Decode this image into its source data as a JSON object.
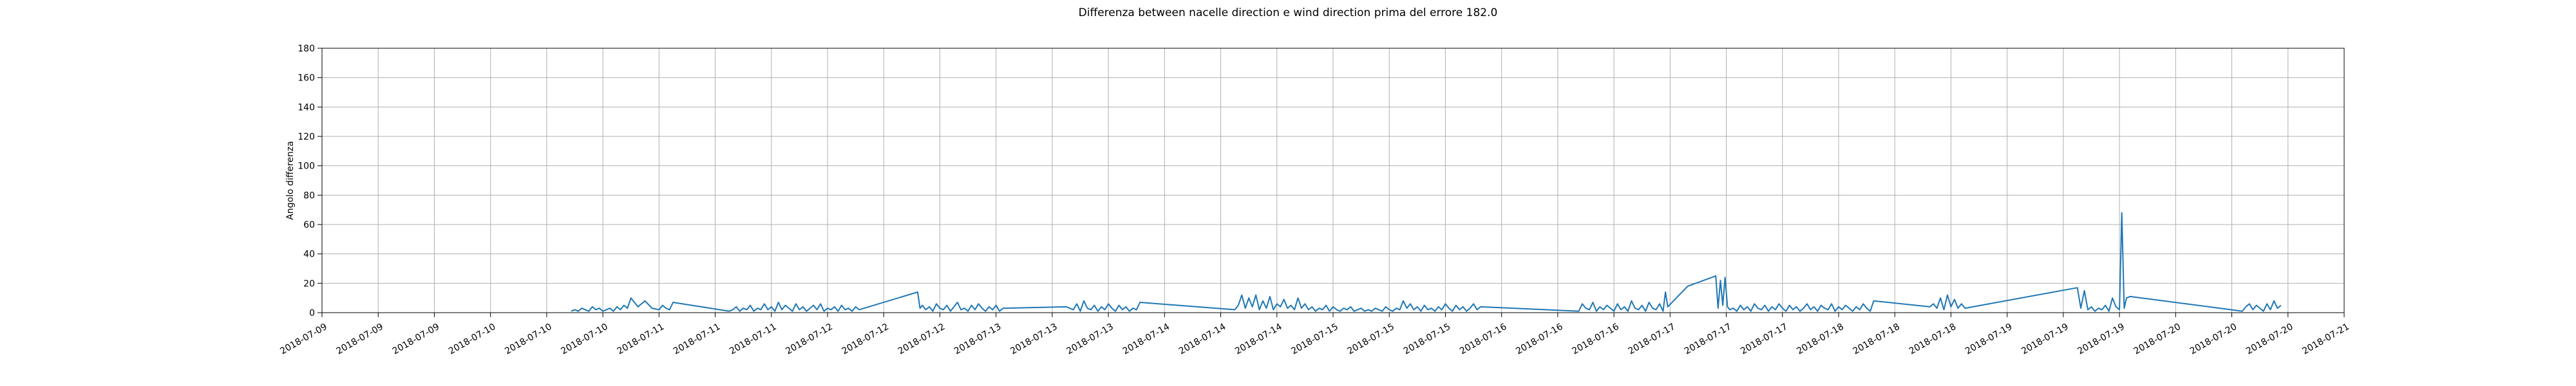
{
  "chart_data": {
    "type": "line",
    "title": "Differenza between nacelle direction e wind direction prima del errore 182.0",
    "xlabel": "",
    "ylabel": "Angolo differenza",
    "ylim": [
      0,
      180
    ],
    "y_ticks": [
      0,
      20,
      40,
      60,
      80,
      100,
      120,
      140,
      160,
      180
    ],
    "xlim": [
      "2018-07-09",
      "2018-07-21"
    ],
    "x_ticks": [
      "2018-07-09",
      "2018-07-09",
      "2018-07-09",
      "2018-07-10",
      "2018-07-10",
      "2018-07-10",
      "2018-07-11",
      "2018-07-11",
      "2018-07-11",
      "2018-07-12",
      "2018-07-12",
      "2018-07-12",
      "2018-07-13",
      "2018-07-13",
      "2018-07-13",
      "2018-07-14",
      "2018-07-14",
      "2018-07-14",
      "2018-07-15",
      "2018-07-15",
      "2018-07-15",
      "2018-07-16",
      "2018-07-16",
      "2018-07-16",
      "2018-07-17",
      "2018-07-17",
      "2018-07-17",
      "2018-07-18",
      "2018-07-18",
      "2018-07-18",
      "2018-07-19",
      "2018-07-19",
      "2018-07-19",
      "2018-07-20",
      "2018-07-20",
      "2018-07-20",
      "2018-07-21"
    ],
    "grid": true,
    "line_color": "#1f77b4",
    "series": [
      {
        "x": [
          "2018-07-10 11:30",
          "2018-07-10 12:00",
          "2018-07-10 12:30",
          "2018-07-10 13:00",
          "2018-07-10 13:30",
          "2018-07-10 14:00",
          "2018-07-10 14:30",
          "2018-07-10 15:00",
          "2018-07-10 15:30",
          "2018-07-10 16:00",
          "2018-07-10 16:30",
          "2018-07-10 17:00",
          "2018-07-10 17:30",
          "2018-07-10 18:00",
          "2018-07-10 18:30",
          "2018-07-10 19:00",
          "2018-07-10 19:30",
          "2018-07-10 20:00",
          "2018-07-10 21:00",
          "2018-07-10 22:00",
          "2018-07-10 23:00",
          "2018-07-11 00:00",
          "2018-07-11 00:30",
          "2018-07-11 01:00",
          "2018-07-11 01:30",
          "2018-07-11 02:00",
          "2018-07-11 10:00",
          "2018-07-11 10:30",
          "2018-07-11 11:00",
          "2018-07-11 11:30",
          "2018-07-11 12:00",
          "2018-07-11 12:30",
          "2018-07-11 13:00",
          "2018-07-11 13:30",
          "2018-07-11 14:00",
          "2018-07-11 14:30",
          "2018-07-11 15:00",
          "2018-07-11 15:30",
          "2018-07-11 16:00",
          "2018-07-11 16:30",
          "2018-07-11 17:00",
          "2018-07-11 17:30",
          "2018-07-11 18:00",
          "2018-07-11 18:30",
          "2018-07-11 19:00",
          "2018-07-11 19:30",
          "2018-07-11 20:00",
          "2018-07-11 20:30",
          "2018-07-11 21:00",
          "2018-07-11 21:30",
          "2018-07-11 22:00",
          "2018-07-11 22:30",
          "2018-07-11 23:00",
          "2018-07-11 23:30",
          "2018-07-12 00:00",
          "2018-07-12 00:30",
          "2018-07-12 01:00",
          "2018-07-12 01:30",
          "2018-07-12 02:00",
          "2018-07-12 02:30",
          "2018-07-12 03:00",
          "2018-07-12 03:30",
          "2018-07-12 04:00",
          "2018-07-12 04:30",
          "2018-07-12 12:50",
          "2018-07-12 13:10",
          "2018-07-12 13:30",
          "2018-07-12 14:00",
          "2018-07-12 14:30",
          "2018-07-12 15:00",
          "2018-07-12 15:30",
          "2018-07-12 16:00",
          "2018-07-12 16:30",
          "2018-07-12 17:00",
          "2018-07-12 17:30",
          "2018-07-12 18:00",
          "2018-07-12 18:30",
          "2018-07-12 19:00",
          "2018-07-12 19:30",
          "2018-07-12 20:00",
          "2018-07-12 20:30",
          "2018-07-12 21:00",
          "2018-07-12 21:30",
          "2018-07-12 22:00",
          "2018-07-12 22:30",
          "2018-07-12 23:00",
          "2018-07-12 23:30",
          "2018-07-13 00:00",
          "2018-07-13 00:30",
          "2018-07-13 01:00",
          "2018-07-13 10:00",
          "2018-07-13 11:00",
          "2018-07-13 11:30",
          "2018-07-13 12:00",
          "2018-07-13 12:30",
          "2018-07-13 13:00",
          "2018-07-13 13:30",
          "2018-07-13 14:00",
          "2018-07-13 14:30",
          "2018-07-13 15:00",
          "2018-07-13 15:30",
          "2018-07-13 16:00",
          "2018-07-13 16:30",
          "2018-07-13 17:00",
          "2018-07-13 17:30",
          "2018-07-13 18:00",
          "2018-07-13 18:30",
          "2018-07-13 19:00",
          "2018-07-13 19:30",
          "2018-07-13 20:00",
          "2018-07-13 20:30",
          "2018-07-14 10:00",
          "2018-07-14 10:30",
          "2018-07-14 11:00",
          "2018-07-14 11:30",
          "2018-07-14 12:00",
          "2018-07-14 12:30",
          "2018-07-14 13:00",
          "2018-07-14 13:30",
          "2018-07-14 14:00",
          "2018-07-14 14:30",
          "2018-07-14 15:00",
          "2018-07-14 15:30",
          "2018-07-14 16:00",
          "2018-07-14 16:30",
          "2018-07-14 17:00",
          "2018-07-14 17:30",
          "2018-07-14 18:00",
          "2018-07-14 18:30",
          "2018-07-14 19:00",
          "2018-07-14 19:30",
          "2018-07-14 20:00",
          "2018-07-14 20:30",
          "2018-07-14 21:00",
          "2018-07-14 21:30",
          "2018-07-14 22:00",
          "2018-07-14 22:30",
          "2018-07-14 23:00",
          "2018-07-14 23:30",
          "2018-07-15 00:00",
          "2018-07-15 00:30",
          "2018-07-15 01:00",
          "2018-07-15 01:30",
          "2018-07-15 02:00",
          "2018-07-15 02:30",
          "2018-07-15 03:00",
          "2018-07-15 03:30",
          "2018-07-15 04:00",
          "2018-07-15 04:30",
          "2018-07-15 05:00",
          "2018-07-15 05:30",
          "2018-07-15 06:00",
          "2018-07-15 06:30",
          "2018-07-15 07:00",
          "2018-07-15 07:30",
          "2018-07-15 08:00",
          "2018-07-15 08:30",
          "2018-07-15 09:00",
          "2018-07-15 09:30",
          "2018-07-15 10:00",
          "2018-07-15 10:30",
          "2018-07-15 11:00",
          "2018-07-15 11:30",
          "2018-07-15 12:00",
          "2018-07-15 12:30",
          "2018-07-15 13:00",
          "2018-07-15 13:30",
          "2018-07-15 14:00",
          "2018-07-15 14:30",
          "2018-07-15 15:00",
          "2018-07-15 15:30",
          "2018-07-15 16:00",
          "2018-07-15 16:30",
          "2018-07-15 17:00",
          "2018-07-15 17:30",
          "2018-07-15 18:00",
          "2018-07-15 18:30",
          "2018-07-15 19:00",
          "2018-07-15 19:30",
          "2018-07-15 20:00",
          "2018-07-15 20:30",
          "2018-07-15 21:00",
          "2018-07-16 11:00",
          "2018-07-16 11:30",
          "2018-07-16 12:00",
          "2018-07-16 12:30",
          "2018-07-16 13:00",
          "2018-07-16 13:30",
          "2018-07-16 14:00",
          "2018-07-16 14:30",
          "2018-07-16 15:00",
          "2018-07-16 15:30",
          "2018-07-16 16:00",
          "2018-07-16 16:30",
          "2018-07-16 17:00",
          "2018-07-16 17:30",
          "2018-07-16 18:00",
          "2018-07-16 18:30",
          "2018-07-16 19:00",
          "2018-07-16 19:30",
          "2018-07-16 20:00",
          "2018-07-16 20:30",
          "2018-07-16 21:00",
          "2018-07-16 21:30",
          "2018-07-16 22:00",
          "2018-07-16 22:30",
          "2018-07-16 23:00",
          "2018-07-16 23:20",
          "2018-07-16 23:40",
          "2018-07-17 02:30",
          "2018-07-17 06:30",
          "2018-07-17 06:50",
          "2018-07-17 07:10",
          "2018-07-17 07:30",
          "2018-07-17 07:50",
          "2018-07-17 08:10",
          "2018-07-17 08:30",
          "2018-07-17 09:00",
          "2018-07-17 09:30",
          "2018-07-17 10:00",
          "2018-07-17 10:30",
          "2018-07-17 11:00",
          "2018-07-17 11:30",
          "2018-07-17 12:00",
          "2018-07-17 12:30",
          "2018-07-17 13:00",
          "2018-07-17 13:30",
          "2018-07-17 14:00",
          "2018-07-17 14:30",
          "2018-07-17 15:00",
          "2018-07-17 15:30",
          "2018-07-17 16:00",
          "2018-07-17 16:30",
          "2018-07-17 17:00",
          "2018-07-17 17:30",
          "2018-07-17 18:00",
          "2018-07-17 18:30",
          "2018-07-17 19:00",
          "2018-07-17 19:30",
          "2018-07-17 20:00",
          "2018-07-17 20:30",
          "2018-07-17 21:00",
          "2018-07-17 21:30",
          "2018-07-17 22:00",
          "2018-07-17 22:30",
          "2018-07-17 23:00",
          "2018-07-17 23:30",
          "2018-07-18 00:00",
          "2018-07-18 00:30",
          "2018-07-18 01:00",
          "2018-07-18 01:30",
          "2018-07-18 02:00",
          "2018-07-18 02:30",
          "2018-07-18 03:00",
          "2018-07-18 03:30",
          "2018-07-18 04:00",
          "2018-07-18 04:30",
          "2018-07-18 05:00",
          "2018-07-18 13:00",
          "2018-07-18 13:30",
          "2018-07-18 14:00",
          "2018-07-18 14:30",
          "2018-07-18 15:00",
          "2018-07-18 15:30",
          "2018-07-18 16:00",
          "2018-07-18 16:30",
          "2018-07-18 17:00",
          "2018-07-18 17:30",
          "2018-07-18 18:00",
          "2018-07-19 10:00",
          "2018-07-19 10:30",
          "2018-07-19 11:00",
          "2018-07-19 11:30",
          "2018-07-19 12:00",
          "2018-07-19 12:30",
          "2018-07-19 13:00",
          "2018-07-19 13:30",
          "2018-07-19 14:00",
          "2018-07-19 14:30",
          "2018-07-19 15:00",
          "2018-07-19 15:30",
          "2018-07-19 16:00",
          "2018-07-19 16:20",
          "2018-07-19 16:40",
          "2018-07-19 17:00",
          "2018-07-19 17:30",
          "2018-07-20 09:30",
          "2018-07-20 10:00",
          "2018-07-20 10:30",
          "2018-07-20 11:00",
          "2018-07-20 11:30",
          "2018-07-20 12:00",
          "2018-07-20 12:30",
          "2018-07-20 13:00",
          "2018-07-20 13:30",
          "2018-07-20 14:00",
          "2018-07-20 14:30",
          "2018-07-20 15:00"
        ],
        "y": [
          1,
          2,
          1,
          3,
          2,
          1,
          4,
          2,
          3,
          1,
          2,
          3,
          1,
          4,
          2,
          5,
          3,
          10,
          4,
          8,
          3,
          2,
          5,
          3,
          2,
          7,
          1,
          2,
          4,
          1,
          3,
          2,
          5,
          1,
          3,
          2,
          6,
          2,
          4,
          1,
          7,
          2,
          5,
          3,
          1,
          6,
          2,
          4,
          1,
          3,
          5,
          2,
          6,
          1,
          3,
          2,
          4,
          1,
          5,
          2,
          3,
          1,
          4,
          2,
          14,
          3,
          5,
          2,
          4,
          1,
          6,
          3,
          2,
          5,
          1,
          4,
          7,
          2,
          3,
          1,
          5,
          2,
          6,
          3,
          1,
          4,
          2,
          5,
          1,
          3,
          4,
          2,
          6,
          1,
          8,
          3,
          2,
          5,
          1,
          4,
          2,
          6,
          3,
          1,
          5,
          2,
          4,
          1,
          3,
          2,
          7,
          2,
          5,
          12,
          3,
          10,
          4,
          12,
          2,
          8,
          3,
          11,
          2,
          6,
          4,
          9,
          3,
          5,
          2,
          10,
          3,
          6,
          2,
          4,
          1,
          3,
          2,
          5,
          1,
          4,
          2,
          1,
          3,
          2,
          4,
          1,
          2,
          3,
          1,
          2,
          1,
          3,
          2,
          1,
          4,
          2,
          1,
          3,
          2,
          8,
          3,
          6,
          2,
          4,
          1,
          5,
          2,
          3,
          1,
          4,
          2,
          6,
          3,
          1,
          5,
          2,
          4,
          1,
          3,
          6,
          2,
          4,
          1,
          6,
          3,
          2,
          7,
          1,
          4,
          2,
          5,
          3,
          1,
          6,
          2,
          4,
          1,
          8,
          3,
          2,
          5,
          1,
          7,
          3,
          2,
          6,
          1,
          14,
          4,
          18,
          25,
          3,
          22,
          5,
          24,
          4,
          2,
          3,
          1,
          5,
          2,
          4,
          1,
          6,
          3,
          2,
          5,
          1,
          4,
          2,
          6,
          3,
          1,
          5,
          2,
          4,
          1,
          3,
          6,
          2,
          4,
          1,
          5,
          3,
          2,
          6,
          1,
          4,
          2,
          5,
          3,
          1,
          4,
          2,
          6,
          3,
          1,
          8,
          4,
          6,
          3,
          10,
          2,
          12,
          4,
          9,
          3,
          6,
          3,
          17,
          3,
          15,
          2,
          4,
          1,
          3,
          2,
          5,
          1,
          10,
          4,
          2,
          68,
          3,
          10,
          11,
          1,
          4,
          6,
          2,
          5,
          3,
          1,
          6,
          2,
          8,
          3,
          5
        ]
      }
    ]
  }
}
